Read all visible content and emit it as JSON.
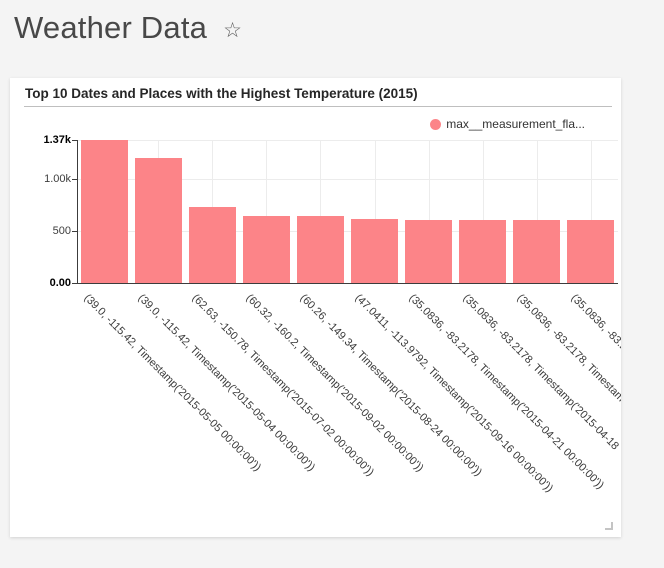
{
  "page": {
    "background": "#f4f4f4"
  },
  "header": {
    "title": "Weather Data",
    "star_icon": "☆"
  },
  "card": {
    "title": "Top 10 Dates and Places with the Highest Temperature (2015)"
  },
  "legend": {
    "label": "max__measurement_fla...",
    "marker_color": "#fc8488"
  },
  "chart_data": {
    "type": "bar",
    "title": "Top 10 Dates and Places with the Highest Temperature (2015)",
    "legend_entries": [
      "max__measurement_fla..."
    ],
    "legend_position": "top-right",
    "grid": true,
    "xlabel": "",
    "ylabel": "",
    "ylim": [
      0,
      1370
    ],
    "bar_color": "#fc8488",
    "y_ticks": [
      {
        "label": "1.37k",
        "value": 1370,
        "bold": true
      },
      {
        "label": "1.00k",
        "value": 1000,
        "bold": false
      },
      {
        "label": "500",
        "value": 500,
        "bold": false
      },
      {
        "label": "0.00",
        "value": 0,
        "bold": true
      }
    ],
    "categories": [
      "(39.0, -115.42, Timestamp('2015-05-05 00:00:00'))",
      "(39.0, -115.42, Timestamp('2015-05-04 00:00:00'))",
      "(62.63, -150.78, Timestamp('2015-07-02 00:00:00'))",
      "(60.32, -160.2, Timestamp('2015-09-02 00:00:00'))",
      "(60.26, -149.34, Timestamp('2015-08-24 00:00:00'))",
      "(47.0411, -113.9792, Timestamp('2015-09-16 00:00:00'))",
      "(35.0836, -83.2178, Timestamp('2015-04-21 00:00:00'))",
      "(35.0836, -83.2178, Timestamp('2015-04-18",
      "(35.0836, -83.2178, Timestam",
      "(35.0836, -83.2"
    ],
    "values": [
      1370,
      1200,
      730,
      645,
      640,
      610,
      605,
      605,
      605,
      600
    ]
  }
}
